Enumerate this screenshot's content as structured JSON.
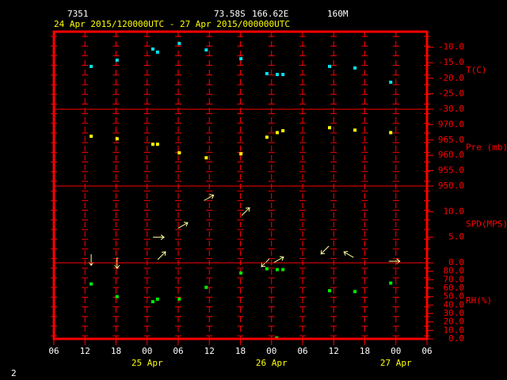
{
  "header": {
    "station": "7351",
    "lat": "73.58S",
    "lon": "166.62E",
    "elevation": "160M",
    "period": "24 Apr 2015/120000UTC - 27 Apr 2015/000000UTC",
    "page": "2"
  },
  "chart_data": [
    {
      "type": "scatter",
      "label": "T(C)",
      "color": "#00e5ee",
      "x": [
        7.2,
        12.2,
        19.1,
        20,
        24.2,
        29.4,
        36.1,
        41.1,
        43.1,
        44.2,
        53.2,
        58.1,
        65
      ],
      "values": [
        -16.2,
        -14.2,
        -10.6,
        -11.6,
        -8.8,
        -10.9,
        -13.7,
        -18.5,
        -18.8,
        -18.8,
        -16.2,
        -16.7,
        -21.3
      ],
      "xlim": [
        0,
        72
      ],
      "ylim": [
        -30,
        -5
      ],
      "yticks": [
        {
          "value": -10,
          "label": "-10.0"
        },
        {
          "value": -15,
          "label": "-15.0"
        },
        {
          "value": -20,
          "label": "-20.0"
        },
        {
          "value": -25,
          "label": "-25.0"
        },
        {
          "value": -30,
          "label": "-30.0"
        }
      ]
    },
    {
      "type": "scatter",
      "label": "Pre (mb)",
      "color": "#ffff00",
      "x": [
        7.2,
        12.2,
        19.1,
        20,
        24.2,
        29.4,
        36.1,
        41.1,
        43.1,
        44.2,
        53.2,
        58.1,
        65
      ],
      "values": [
        966.2,
        965.4,
        963.6,
        963.6,
        960.8,
        959.2,
        960.5,
        965.9,
        967.4,
        968,
        969,
        968.2,
        967.4
      ],
      "xlim": [
        0,
        72
      ],
      "ylim": [
        950,
        975
      ],
      "yticks": [
        {
          "value": 970,
          "label": "970.0"
        },
        {
          "value": 965,
          "label": "965.0"
        },
        {
          "value": 960,
          "label": "960.0"
        },
        {
          "value": 955,
          "label": "955.0"
        },
        {
          "value": 950,
          "label": "950.0"
        }
      ]
    },
    {
      "type": "vector",
      "label": "SPD(MPS)",
      "color": "#ffff99",
      "x": [
        7.2,
        12.2,
        20.2,
        20.8,
        24.9,
        29.9,
        37,
        40.8,
        43.4,
        52.3,
        56.9,
        65.7
      ],
      "values": [
        0.6,
        0,
        5,
        1.4,
        7.3,
        12.7,
        10,
        0,
        0.6,
        2.5,
        1.6,
        0.3
      ],
      "directions": [
        180,
        180,
        90,
        45,
        60,
        60,
        45,
        225,
        60,
        225,
        300,
        90
      ],
      "xlim": [
        0,
        72
      ],
      "ylim": [
        0,
        15
      ],
      "yticks": [
        {
          "value": 10,
          "label": "10.0"
        },
        {
          "value": 5,
          "label": "5.0"
        },
        {
          "value": 0,
          "label": "0.0"
        }
      ]
    },
    {
      "type": "scatter",
      "label": "RH(%)",
      "color": "#00ee00",
      "x": [
        7.2,
        12.2,
        19.1,
        20,
        24.2,
        29.4,
        36.1,
        41.1,
        43.1,
        44.2,
        43,
        53.2,
        58.1,
        65
      ],
      "values": [
        65,
        50,
        44,
        47,
        47,
        61,
        78,
        83,
        82,
        82,
        1,
        57,
        56,
        66
      ],
      "xlim": [
        0,
        72
      ],
      "ylim": [
        0,
        90
      ],
      "yticks": [
        {
          "value": 80,
          "label": "80.0"
        },
        {
          "value": 70,
          "label": "70.0"
        },
        {
          "value": 60,
          "label": "60.0"
        },
        {
          "value": 50,
          "label": "50.0"
        },
        {
          "value": 40,
          "label": "40.0"
        },
        {
          "value": 30,
          "label": "30.0"
        },
        {
          "value": 20,
          "label": "20.0"
        },
        {
          "value": 10,
          "label": "10.0"
        },
        {
          "value": 0,
          "label": "0.0"
        }
      ],
      "xticks": [
        {
          "value": 0,
          "label": "06"
        },
        {
          "value": 6,
          "label": "12"
        },
        {
          "value": 12,
          "label": "18"
        },
        {
          "value": 18,
          "label": "00"
        },
        {
          "value": 24,
          "label": "06"
        },
        {
          "value": 30,
          "label": "12"
        },
        {
          "value": 36,
          "label": "18"
        },
        {
          "value": 42,
          "label": "00"
        },
        {
          "value": 48,
          "label": "06"
        },
        {
          "value": 54,
          "label": "12"
        },
        {
          "value": 60,
          "label": "18"
        },
        {
          "value": 66,
          "label": "00"
        },
        {
          "value": 72,
          "label": "06"
        }
      ],
      "day_ticks": [
        {
          "value": 18,
          "label": "25 Apr"
        },
        {
          "value": 42,
          "label": "26 Apr"
        },
        {
          "value": 66,
          "label": "27 Apr"
        }
      ]
    }
  ]
}
